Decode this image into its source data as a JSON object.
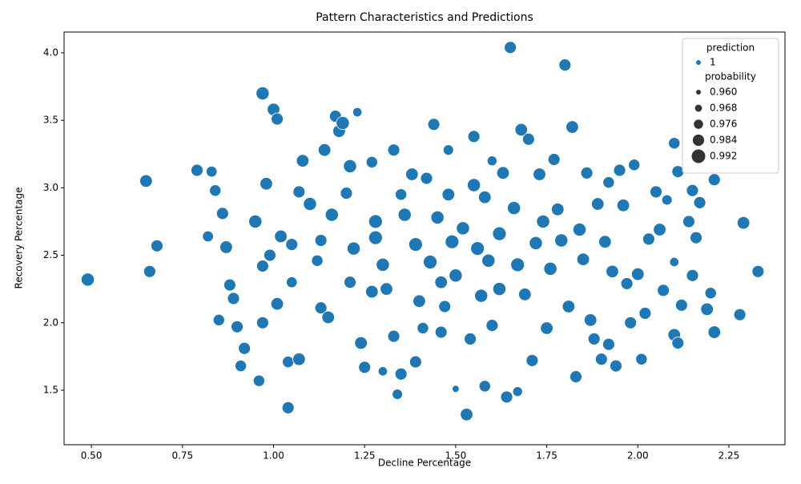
{
  "chart_data": {
    "type": "scatter",
    "title": "Pattern Characteristics and Predictions",
    "x_label": "Decline Percentage",
    "y_label": "Recovery Percentage",
    "xlim": [
      0.425,
      2.404
    ],
    "ylim": [
      1.096,
      4.154
    ],
    "xticks": [
      {
        "value": 0.5,
        "label": "0.50"
      },
      {
        "value": 0.75,
        "label": "0.75"
      },
      {
        "value": 1,
        "label": "1.00"
      },
      {
        "value": 1.25,
        "label": "1.25"
      },
      {
        "value": 1.5,
        "label": "1.50"
      },
      {
        "value": 1.75,
        "label": "1.75"
      },
      {
        "value": 2,
        "label": "2.00"
      },
      {
        "value": 2.25,
        "label": "2.25"
      }
    ],
    "yticks": [
      1.5,
      {
        "value": 2,
        "label": "2.0"
      },
      2.5,
      {
        "value": 3,
        "label": "3.0"
      },
      3.5,
      {
        "value": 4,
        "label": "4.0"
      }
    ],
    "legend": {
      "corner": "upper right",
      "hue_title": "prediction",
      "size_title": "probability",
      "sizes": [
        {
          "value": 0.96,
          "label": "0.960"
        },
        {
          "value": 0.968,
          "label": "0.968"
        },
        {
          "value": 0.976,
          "label": "0.976"
        },
        {
          "value": 0.984,
          "label": "0.984"
        },
        {
          "value": 0.992,
          "label": "0.992"
        }
      ]
    },
    "series": [
      {
        "name": "1",
        "color": "#1f77b4",
        "x": [
          0.49,
          0.65,
          0.66,
          0.68,
          0.79,
          0.82,
          0.83,
          0.84,
          0.86,
          0.87,
          0.88,
          0.89,
          0.85,
          0.9,
          0.92,
          0.91,
          0.96,
          0.97,
          1.0,
          1.01,
          0.95,
          0.98,
          0.97,
          0.99,
          1.01,
          0.97,
          1.04,
          1.07,
          1.04,
          1.02,
          1.05,
          1.07,
          1.08,
          1.1,
          1.12,
          1.13,
          1.15,
          1.14,
          1.17,
          1.18,
          1.19,
          1.23,
          1.2,
          1.22,
          1.21,
          1.24,
          1.25,
          1.28,
          1.27,
          1.3,
          1.31,
          1.33,
          1.34,
          1.35,
          1.33,
          1.36,
          1.38,
          1.39,
          1.4,
          1.41,
          1.42,
          1.44,
          1.45,
          1.46,
          1.47,
          1.48,
          1.49,
          1.5,
          1.52,
          1.53,
          1.54,
          1.55,
          1.56,
          1.57,
          1.58,
          1.59,
          1.6,
          1.62,
          1.63,
          1.64,
          1.65,
          1.66,
          1.67,
          1.68,
          1.69,
          1.7,
          1.71,
          1.72,
          1.73,
          1.75,
          1.76,
          1.77,
          1.78,
          1.79,
          1.8,
          1.81,
          1.82,
          1.83,
          1.84,
          1.85,
          1.86,
          1.87,
          1.88,
          1.89,
          1.9,
          1.91,
          1.92,
          1.93,
          1.94,
          1.95,
          1.96,
          1.97,
          1.98,
          1.99,
          2.0,
          2.01,
          2.02,
          2.03,
          2.05,
          2.06,
          2.07,
          2.08,
          2.1,
          2.11,
          2.1,
          2.12,
          2.14,
          2.15,
          2.16,
          2.17,
          2.15,
          2.19,
          2.2,
          2.21,
          2.21,
          2.28,
          2.29,
          2.33,
          2.11,
          2.1,
          1.92,
          1.46,
          1.27,
          1.13,
          1.58,
          1.5,
          1.3,
          1.67,
          1.39,
          1.21,
          1.35,
          1.62,
          1.74,
          1.43,
          1.28,
          1.55,
          1.16,
          1.05,
          1.6,
          1.48
        ],
        "values": [
          2.32,
          3.05,
          2.38,
          2.57,
          3.13,
          2.64,
          3.12,
          2.98,
          2.81,
          2.56,
          2.28,
          2.18,
          2.02,
          1.97,
          1.81,
          1.68,
          1.57,
          3.7,
          3.58,
          3.51,
          2.75,
          3.03,
          2.42,
          2.5,
          2.14,
          2.0,
          1.71,
          1.73,
          1.37,
          2.64,
          2.58,
          2.97,
          3.2,
          2.88,
          2.46,
          2.11,
          2.04,
          3.28,
          3.53,
          3.42,
          3.48,
          3.56,
          2.96,
          2.55,
          2.3,
          1.85,
          1.67,
          2.75,
          3.19,
          2.43,
          2.25,
          1.9,
          1.47,
          1.62,
          3.28,
          2.8,
          3.1,
          2.58,
          2.16,
          1.96,
          3.07,
          3.47,
          2.78,
          2.3,
          2.12,
          2.95,
          2.6,
          2.35,
          2.7,
          1.32,
          1.88,
          3.38,
          2.55,
          2.2,
          2.93,
          2.46,
          1.98,
          2.25,
          3.11,
          1.45,
          4.04,
          2.85,
          2.43,
          3.43,
          2.21,
          3.36,
          1.72,
          2.59,
          3.1,
          1.96,
          2.4,
          3.21,
          2.84,
          2.61,
          3.91,
          2.12,
          3.45,
          1.6,
          2.69,
          2.47,
          3.11,
          2.02,
          1.88,
          2.88,
          1.73,
          2.6,
          3.04,
          2.38,
          1.68,
          3.13,
          2.87,
          2.29,
          2.0,
          3.17,
          2.36,
          1.73,
          2.07,
          2.62,
          2.97,
          2.69,
          2.24,
          2.91,
          3.33,
          3.12,
          1.91,
          2.13,
          2.75,
          2.98,
          2.63,
          2.89,
          2.35,
          2.1,
          2.22,
          1.93,
          3.06,
          2.06,
          2.74,
          2.38,
          1.85,
          2.45,
          1.84,
          1.93,
          2.23,
          2.61,
          1.53,
          1.51,
          1.64,
          1.49,
          1.71,
          3.16,
          2.95,
          2.66,
          2.75,
          2.45,
          2.63,
          3.02,
          2.8,
          2.3,
          3.2,
          3.28
        ],
        "probability": [
          0.99,
          0.988,
          0.986,
          0.986,
          0.986,
          0.982,
          0.982,
          0.984,
          0.986,
          0.988,
          0.986,
          0.986,
          0.984,
          0.986,
          0.986,
          0.984,
          0.984,
          0.99,
          0.988,
          0.986,
          0.99,
          0.988,
          0.986,
          0.986,
          0.988,
          0.986,
          0.984,
          0.988,
          0.986,
          0.988,
          0.986,
          0.986,
          0.988,
          0.99,
          0.984,
          0.986,
          0.988,
          0.988,
          0.986,
          0.988,
          0.99,
          0.976,
          0.986,
          0.99,
          0.986,
          0.988,
          0.986,
          0.992,
          0.984,
          0.99,
          0.988,
          0.986,
          0.98,
          0.986,
          0.986,
          0.99,
          0.988,
          0.992,
          0.988,
          0.984,
          0.986,
          0.986,
          0.99,
          0.988,
          0.986,
          0.988,
          0.992,
          0.99,
          0.99,
          0.988,
          0.986,
          0.986,
          0.992,
          0.99,
          0.988,
          0.99,
          0.986,
          0.99,
          0.988,
          0.986,
          0.986,
          0.99,
          0.992,
          0.988,
          0.988,
          0.986,
          0.986,
          0.99,
          0.988,
          0.988,
          0.99,
          0.986,
          0.988,
          0.99,
          0.986,
          0.988,
          0.988,
          0.986,
          0.99,
          0.988,
          0.986,
          0.988,
          0.986,
          0.988,
          0.986,
          0.988,
          0.984,
          0.988,
          0.986,
          0.986,
          0.988,
          0.986,
          0.986,
          0.984,
          0.988,
          0.984,
          0.986,
          0.986,
          0.986,
          0.988,
          0.986,
          0.98,
          0.984,
          0.986,
          0.988,
          0.986,
          0.986,
          0.986,
          0.986,
          0.986,
          0.986,
          0.988,
          0.984,
          0.988,
          0.986,
          0.986,
          0.988,
          0.986,
          0.986,
          0.976,
          0.986,
          0.986,
          0.988,
          0.986,
          0.984,
          0.968,
          0.976,
          0.978,
          0.986,
          0.99,
          0.984,
          0.992,
          0.99,
          0.992,
          0.992,
          0.99,
          0.99,
          0.982,
          0.978,
          0.98
        ]
      }
    ]
  }
}
